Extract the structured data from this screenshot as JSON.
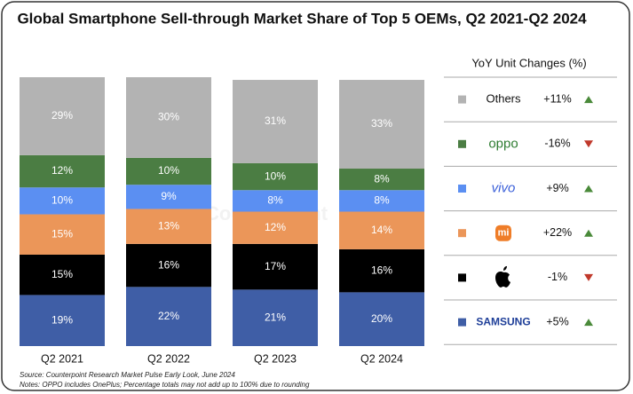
{
  "chart_data": {
    "type": "bar",
    "stacked": true,
    "title": "Global Smartphone Sell-through Market Share of Top 5 OEMs, Q2 2021-Q2 2024",
    "categories": [
      "Q2 2021",
      "Q2 2022",
      "Q2 2023",
      "Q2 2024"
    ],
    "ylim": [
      0,
      100
    ],
    "legend_title": "YoY Unit Changes (%)",
    "watermark": "Counterpoint",
    "source": "Source: Counterpoint Research Market Pulse Early Look, June 2024",
    "notes": "Notes: OPPO includes OnePlus; Percentage totals may not add up to 100% due to rounding",
    "series": [
      {
        "name": "Others",
        "color": "#b3b3b3",
        "values": [
          29,
          30,
          31,
          33
        ],
        "value_labels": [
          "29%",
          "30%",
          "31%",
          "33%"
        ],
        "yoy_change": 11,
        "yoy_change_label": "+11%"
      },
      {
        "name": "oppo",
        "color": "#4b7d43",
        "values": [
          12,
          10,
          10,
          8
        ],
        "value_labels": [
          "12%",
          "10%",
          "10%",
          "8%"
        ],
        "yoy_change": -16,
        "yoy_change_label": "-16%"
      },
      {
        "name": "vivo",
        "color": "#5b8ff2",
        "values": [
          10,
          9,
          8,
          8
        ],
        "value_labels": [
          "10%",
          "9%",
          "8%",
          "8%"
        ],
        "yoy_change": 9,
        "yoy_change_label": "+9%"
      },
      {
        "name": "mi",
        "color": "#eb9659",
        "values": [
          15,
          13,
          12,
          14
        ],
        "value_labels": [
          "15%",
          "13%",
          "12%",
          "14%"
        ],
        "yoy_change": 22,
        "yoy_change_label": "+22%"
      },
      {
        "name": null,
        "color": "#000000",
        "values": [
          15,
          16,
          17,
          16
        ],
        "value_labels": [
          "15%",
          "16%",
          "17%",
          "16%"
        ],
        "yoy_change": -1,
        "yoy_change_label": "-1%"
      },
      {
        "name": "SAMSUNG",
        "color": "#3f5ea6",
        "values": [
          19,
          22,
          21,
          20
        ],
        "value_labels": [
          "19%",
          "22%",
          "21%",
          "20%"
        ],
        "yoy_change": 5,
        "yoy_change_label": "+5%"
      }
    ]
  }
}
